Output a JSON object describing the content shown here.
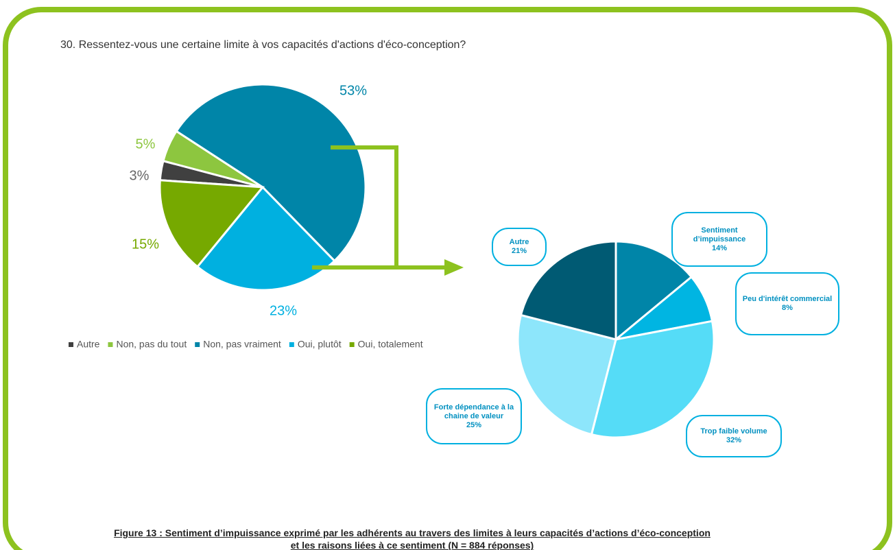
{
  "chart_data": [
    {
      "type": "pie",
      "title": "30. Ressentez-vous une certaine limite à vos capacités d'actions d'éco-conception?",
      "categories": [
        "Autre",
        "Non, pas du tout",
        "Non, pas vraiment",
        "Oui, plutôt",
        "Oui, totalement"
      ],
      "values": [
        3,
        5,
        53,
        23,
        15
      ],
      "value_labels": [
        "3%",
        "5%",
        "53%",
        "23%",
        "15%"
      ],
      "colors": [
        "#404040",
        "#8dc63f",
        "#0085a8",
        "#00b0e0",
        "#76a900"
      ],
      "label_colors": [
        "#666666",
        "#8dc63f",
        "#0085a8",
        "#00b0e0",
        "#76a900"
      ],
      "legend": "bottom"
    },
    {
      "type": "pie",
      "categories": [
        "Sentiment d’impuissance",
        "Peu d'intérêt commercial",
        "Trop faible volume",
        "Forte dépendance à la chaine de valeur",
        "Autre"
      ],
      "values": [
        14,
        8,
        32,
        25,
        21
      ],
      "value_labels": [
        "14%",
        "8%",
        "32%",
        "25%",
        "21%"
      ],
      "colors": [
        "#0085a8",
        "#00b5e2",
        "#55dcf7",
        "#8de6fb",
        "#005a73"
      ]
    }
  ],
  "caption": {
    "lines": [
      "Figure 13 : Sentiment d’impuissance exprimé par les adhérents au travers des limites à leurs capacités d’actions d’éco-conception",
      "et les raisons liées à ce sentiment (N = 884 réponses)"
    ]
  }
}
